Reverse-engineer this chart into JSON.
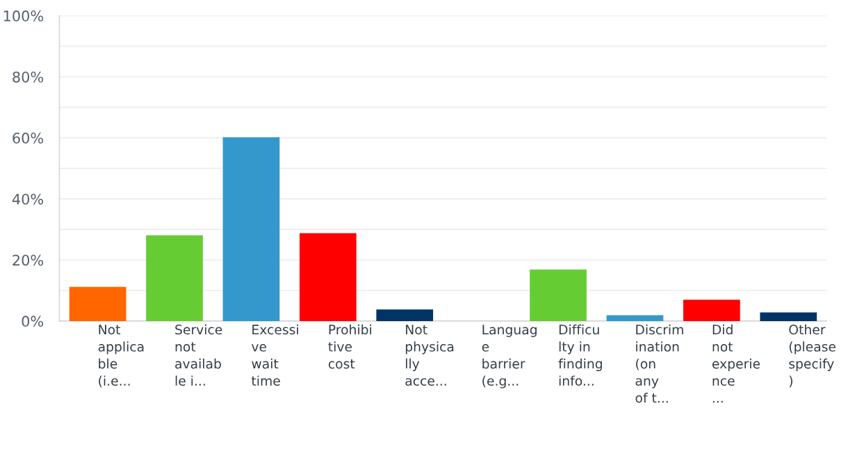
{
  "chart_data": {
    "type": "bar",
    "categories": [
      "Not\napplica\nble\n(i.e...",
      "Service\nnot\navailab\nle i...",
      "Excessi\nve\nwait\ntime",
      "Prohibi\ntive\ncost",
      "Not\nphysica\nlly\nacce...",
      "Languag\ne\nbarrier\n(e.g...",
      "Difficu\nlty in\nfinding\ninfo...",
      "Discrim\nination\n(on\nany\nof t...",
      "Did\nnot\nexperie\nnce\n...",
      "Other\n(please\nspecify\n)"
    ],
    "values": [
      11.2,
      28.1,
      60.2,
      28.8,
      3.8,
      0,
      16.9,
      1.9,
      7.0,
      2.8
    ],
    "colors": [
      "#ff6600",
      "#66cc33",
      "#3498cc",
      "#ff0000",
      "#003366",
      "#ff6600",
      "#66cc33",
      "#3498cc",
      "#ff0000",
      "#003366"
    ],
    "ylim": [
      0,
      100
    ],
    "yticks": [
      {
        "value": 0,
        "label": "0%"
      },
      {
        "value": 10,
        "label": null
      },
      {
        "value": 20,
        "label": "20%"
      },
      {
        "value": 30,
        "label": null
      },
      {
        "value": 40,
        "label": "40%"
      },
      {
        "value": 50,
        "label": null
      },
      {
        "value": 60,
        "label": "60%"
      },
      {
        "value": 70,
        "label": null
      },
      {
        "value": 80,
        "label": "80%"
      },
      {
        "value": 90,
        "label": null
      },
      {
        "value": 100,
        "label": "100%"
      }
    ],
    "grid": "y"
  }
}
